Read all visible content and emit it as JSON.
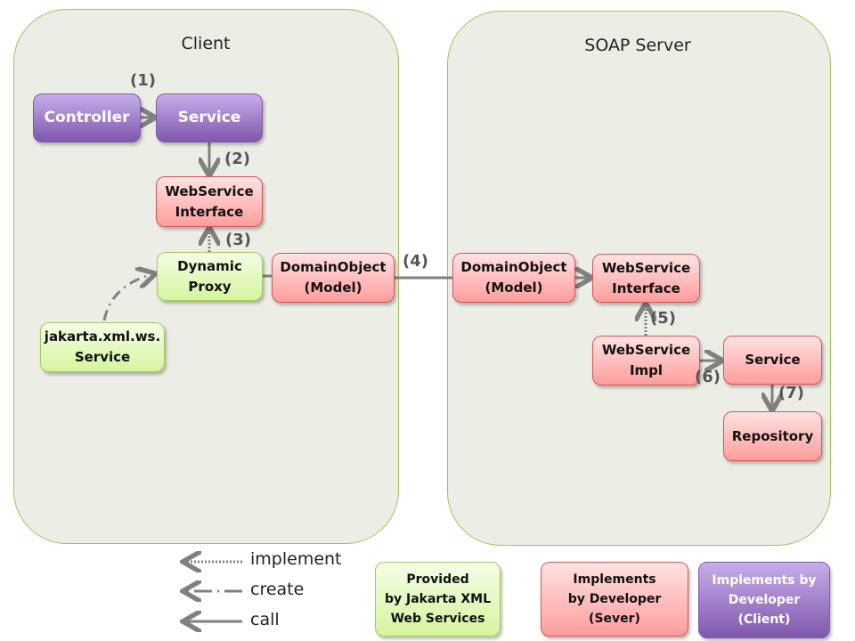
{
  "client": {
    "title": "Client",
    "controller": "Controller",
    "service": "Service",
    "ws_interface": [
      "WebService",
      "Interface"
    ],
    "dynamic_proxy": [
      "Dynamic",
      "Proxy"
    ],
    "domain_object": [
      "DomainObject",
      "(Model)"
    ],
    "jakarta_service": [
      "jakarta.xml.ws.",
      "Service"
    ]
  },
  "server": {
    "title": "SOAP Server",
    "domain_object": [
      "DomainObject",
      "(Model)"
    ],
    "ws_interface": [
      "WebService",
      "Interface"
    ],
    "ws_impl": [
      "WebService",
      "Impl"
    ],
    "service": "Service",
    "repository": "Repository"
  },
  "steps": [
    "(1)",
    "(2)",
    "(3)",
    "(4)",
    "(5)",
    "(6)",
    "(7)"
  ],
  "legend": {
    "implement": "implement",
    "create": "create",
    "call": "call",
    "provided": [
      "Provided",
      "by Jakarta XML",
      "Web Services"
    ],
    "impl_server": [
      "Implements",
      "by Developer",
      "(Sever)"
    ],
    "impl_client": [
      "Implements by",
      "Developer",
      "(Client)"
    ]
  },
  "colors": {
    "purple": "#8a63b8",
    "red": "#ffb0b0",
    "green": "#e3f8bd",
    "arrow": "#808080"
  }
}
